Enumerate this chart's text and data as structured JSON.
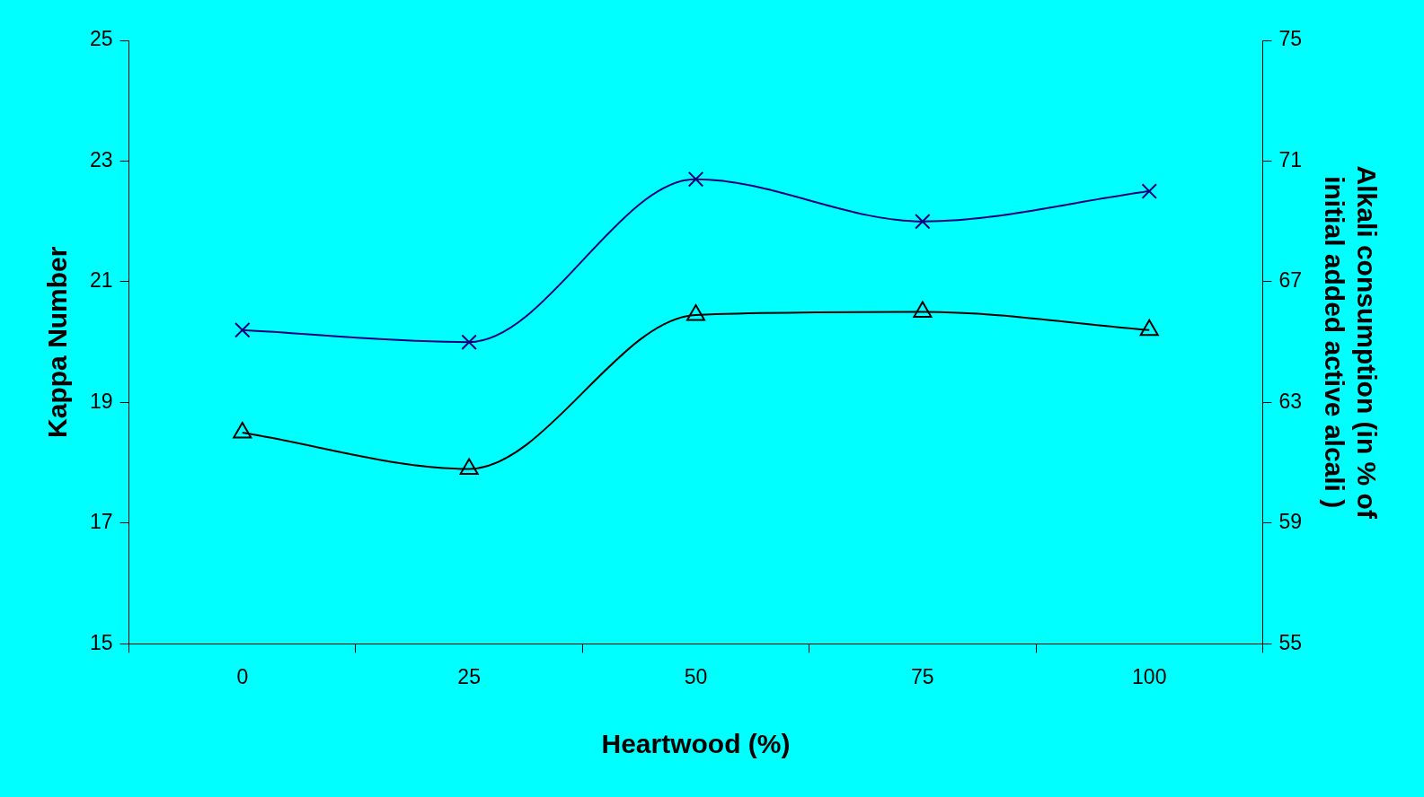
{
  "chart_data": {
    "type": "line",
    "xlabel": "Heartwood (%)",
    "ylabel": "Kappa Number",
    "y2label": "Alkali consumption (in % of\ninitial added active alcali )",
    "categories": [
      "0",
      "25",
      "50",
      "75",
      "100"
    ],
    "series": [
      {
        "color": "#000080",
        "marker": "cross",
        "values": [
          20.2,
          20.0,
          22.7,
          22.0,
          22.5
        ]
      },
      {
        "color": "#000000",
        "marker": "triangle",
        "axis": "y2",
        "values": [
          62.0,
          60.8,
          65.9,
          66.0,
          65.4
        ]
      }
    ],
    "ylim": [
      15,
      25
    ],
    "yticks": [
      15,
      17,
      19,
      21,
      23,
      25
    ],
    "y2lim": [
      55,
      75
    ],
    "y2ticks": [
      55,
      59,
      63,
      67,
      71,
      75
    ],
    "grid": false,
    "legend": false
  }
}
